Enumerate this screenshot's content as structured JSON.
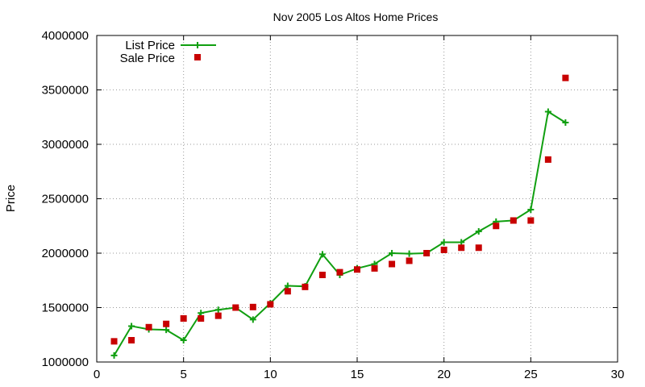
{
  "chart_data": {
    "type": "line",
    "title": "Nov 2005 Los Altos Home Prices",
    "xlabel": "",
    "ylabel": "Price",
    "xlim": [
      0,
      30
    ],
    "ylim": [
      1000000,
      4000000
    ],
    "xticks": [
      0,
      5,
      10,
      15,
      20,
      25,
      30
    ],
    "yticks": [
      1000000,
      1500000,
      2000000,
      2500000,
      3000000,
      3500000,
      4000000
    ],
    "grid": true,
    "legend_position": "top-left",
    "series": [
      {
        "name": "List Price",
        "style": "line-with-plus-markers",
        "color": "#109f10",
        "x": [
          1,
          2,
          3,
          4,
          5,
          6,
          7,
          8,
          9,
          10,
          11,
          12,
          13,
          14,
          15,
          16,
          17,
          18,
          19,
          20,
          21,
          22,
          23,
          24,
          25,
          26,
          27
        ],
        "y": [
          1060000,
          1330000,
          1300000,
          1295000,
          1200000,
          1450000,
          1480000,
          1500000,
          1390000,
          1540000,
          1700000,
          1695000,
          1990000,
          1800000,
          1860000,
          1900000,
          2000000,
          1995000,
          2000000,
          2100000,
          2100000,
          2200000,
          2290000,
          2300000,
          2400000,
          3300000,
          3200000
        ]
      },
      {
        "name": "Sale Price",
        "style": "square-markers",
        "color": "#c80000",
        "x": [
          1,
          2,
          3,
          4,
          5,
          6,
          7,
          8,
          9,
          10,
          11,
          12,
          13,
          14,
          15,
          16,
          17,
          18,
          19,
          20,
          21,
          22,
          23,
          24,
          25,
          26,
          27
        ],
        "y": [
          1190000,
          1200000,
          1320000,
          1350000,
          1400000,
          1400000,
          1425000,
          1500000,
          1505000,
          1530000,
          1650000,
          1690000,
          1800000,
          1825000,
          1850000,
          1860000,
          1900000,
          1930000,
          2000000,
          2030000,
          2050000,
          2050000,
          2250000,
          2300000,
          2300000,
          2860000,
          3610000
        ]
      }
    ]
  }
}
